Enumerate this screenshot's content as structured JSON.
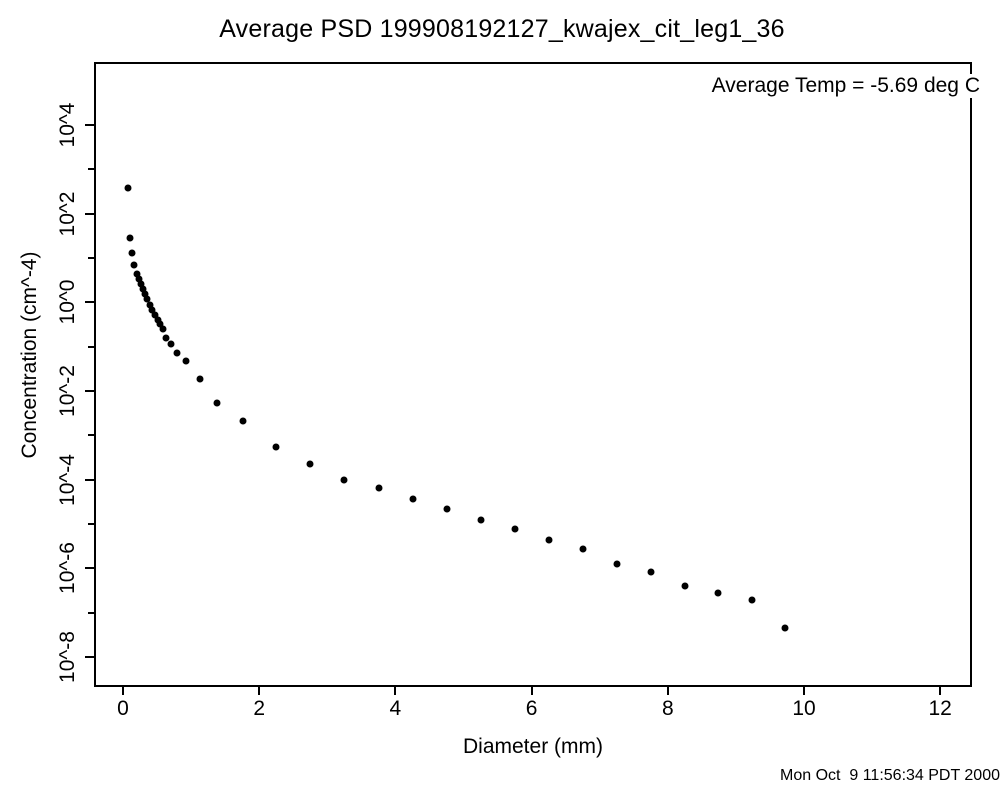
{
  "title": "Average PSD 199908192127_kwajex_cit_leg1_36",
  "annotation": "Average Temp = -5.69 deg C",
  "timestamp": "Mon Oct  9 11:56:34 PDT 2000",
  "colors": {
    "foreground": "#000000",
    "background": "#ffffff"
  },
  "chart_data": {
    "type": "scatter",
    "title": "Average PSD 199908192127_kwajex_cit_leg1_36",
    "xlabel": "Diameter (mm)",
    "ylabel": "Concentration (cm^-4)",
    "annotation": "Average Temp = -5.69 deg C",
    "marker": "filled-circle",
    "marker_color": "#000000",
    "grid": false,
    "y_scale": "log10",
    "xlim": [
      -0.43,
      12.47
    ],
    "ylim_log10": [
      -8.7,
      5.4
    ],
    "x_ticks": [
      0,
      2,
      4,
      6,
      8,
      10,
      12
    ],
    "y_ticks": [
      {
        "exp": 4,
        "label": "10^4"
      },
      {
        "exp": 3
      },
      {
        "exp": 2,
        "label": "10^2"
      },
      {
        "exp": 1
      },
      {
        "exp": 0,
        "label": "10^0"
      },
      {
        "exp": -1
      },
      {
        "exp": -2,
        "label": "10^-2"
      },
      {
        "exp": -3
      },
      {
        "exp": -4,
        "label": "10^-4"
      },
      {
        "exp": -5
      },
      {
        "exp": -6,
        "label": "10^-6"
      },
      {
        "exp": -7
      },
      {
        "exp": -8,
        "label": "10^-8"
      }
    ],
    "series": [
      {
        "name": "Average PSD",
        "diameter_mm": [
          0.07,
          0.1,
          0.13,
          0.16,
          0.21,
          0.23,
          0.26,
          0.29,
          0.32,
          0.35,
          0.4,
          0.43,
          0.47,
          0.51,
          0.54,
          0.59,
          0.63,
          0.7,
          0.79,
          0.93,
          1.13,
          1.38,
          1.76,
          2.25,
          2.75,
          3.25,
          3.76,
          4.26,
          4.76,
          5.26,
          5.76,
          6.26,
          6.76,
          7.25,
          7.76,
          8.25,
          8.74,
          9.24,
          9.72
        ],
        "log10_concentration": [
          2.58,
          1.45,
          1.11,
          0.84,
          0.64,
          0.53,
          0.41,
          0.3,
          0.19,
          0.08,
          -0.06,
          -0.17,
          -0.29,
          -0.4,
          -0.49,
          -0.6,
          -0.8,
          -0.94,
          -1.14,
          -1.32,
          -1.73,
          -2.27,
          -2.68,
          -3.26,
          -3.65,
          -4.01,
          -4.19,
          -4.44,
          -4.66,
          -4.91,
          -5.11,
          -5.36,
          -5.56,
          -5.9,
          -6.08,
          -6.4,
          -6.56,
          -6.71,
          -7.35
        ]
      }
    ]
  }
}
